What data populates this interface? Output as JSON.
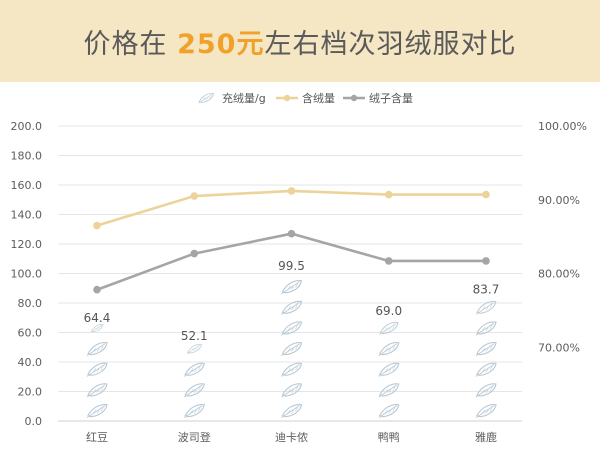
{
  "header": {
    "title_prefix": "价格在 ",
    "title_highlight": "250元",
    "title_suffix": "左右档次羽绒服对比"
  },
  "chart_data": {
    "type": "bar",
    "categories": [
      "红豆",
      "波司登",
      "迪卡侬",
      "鸭鸭",
      "雅鹿"
    ],
    "left_axis": {
      "ylim": [
        0,
        200
      ],
      "ticks": [
        "0.0",
        "20.0",
        "40.0",
        "60.0",
        "80.0",
        "100.0",
        "120.0",
        "140.0",
        "160.0",
        "180.0",
        "200.0"
      ]
    },
    "right_axis": {
      "ylim": [
        0.6,
        1.0
      ],
      "ticks": [
        "70.00%",
        "80.00%",
        "90.00%",
        "100.00%"
      ]
    },
    "legend": [
      {
        "name": "充绒量/g",
        "style": "feather"
      },
      {
        "name": "含绒量",
        "style": "line",
        "color": "#ecd39a"
      },
      {
        "name": "绒子含量",
        "style": "line",
        "color": "#a5a5a5"
      }
    ],
    "series": [
      {
        "name": "充绒量/g",
        "type": "pictograph",
        "axis": "left",
        "values": [
          64.4,
          52.1,
          99.5,
          69.0,
          83.7
        ],
        "labels": [
          "64.4",
          "52.1",
          "99.5",
          "69.0",
          "83.7"
        ]
      },
      {
        "name": "含绒量",
        "type": "line",
        "axis": "right",
        "color": "#ecd39a",
        "values": [
          0.865,
          0.905,
          0.912,
          0.907,
          0.907
        ]
      },
      {
        "name": "绒子含量",
        "type": "line",
        "axis": "right",
        "color": "#a5a5a5",
        "values": [
          0.778,
          0.827,
          0.854,
          0.817,
          0.817
        ]
      }
    ]
  }
}
